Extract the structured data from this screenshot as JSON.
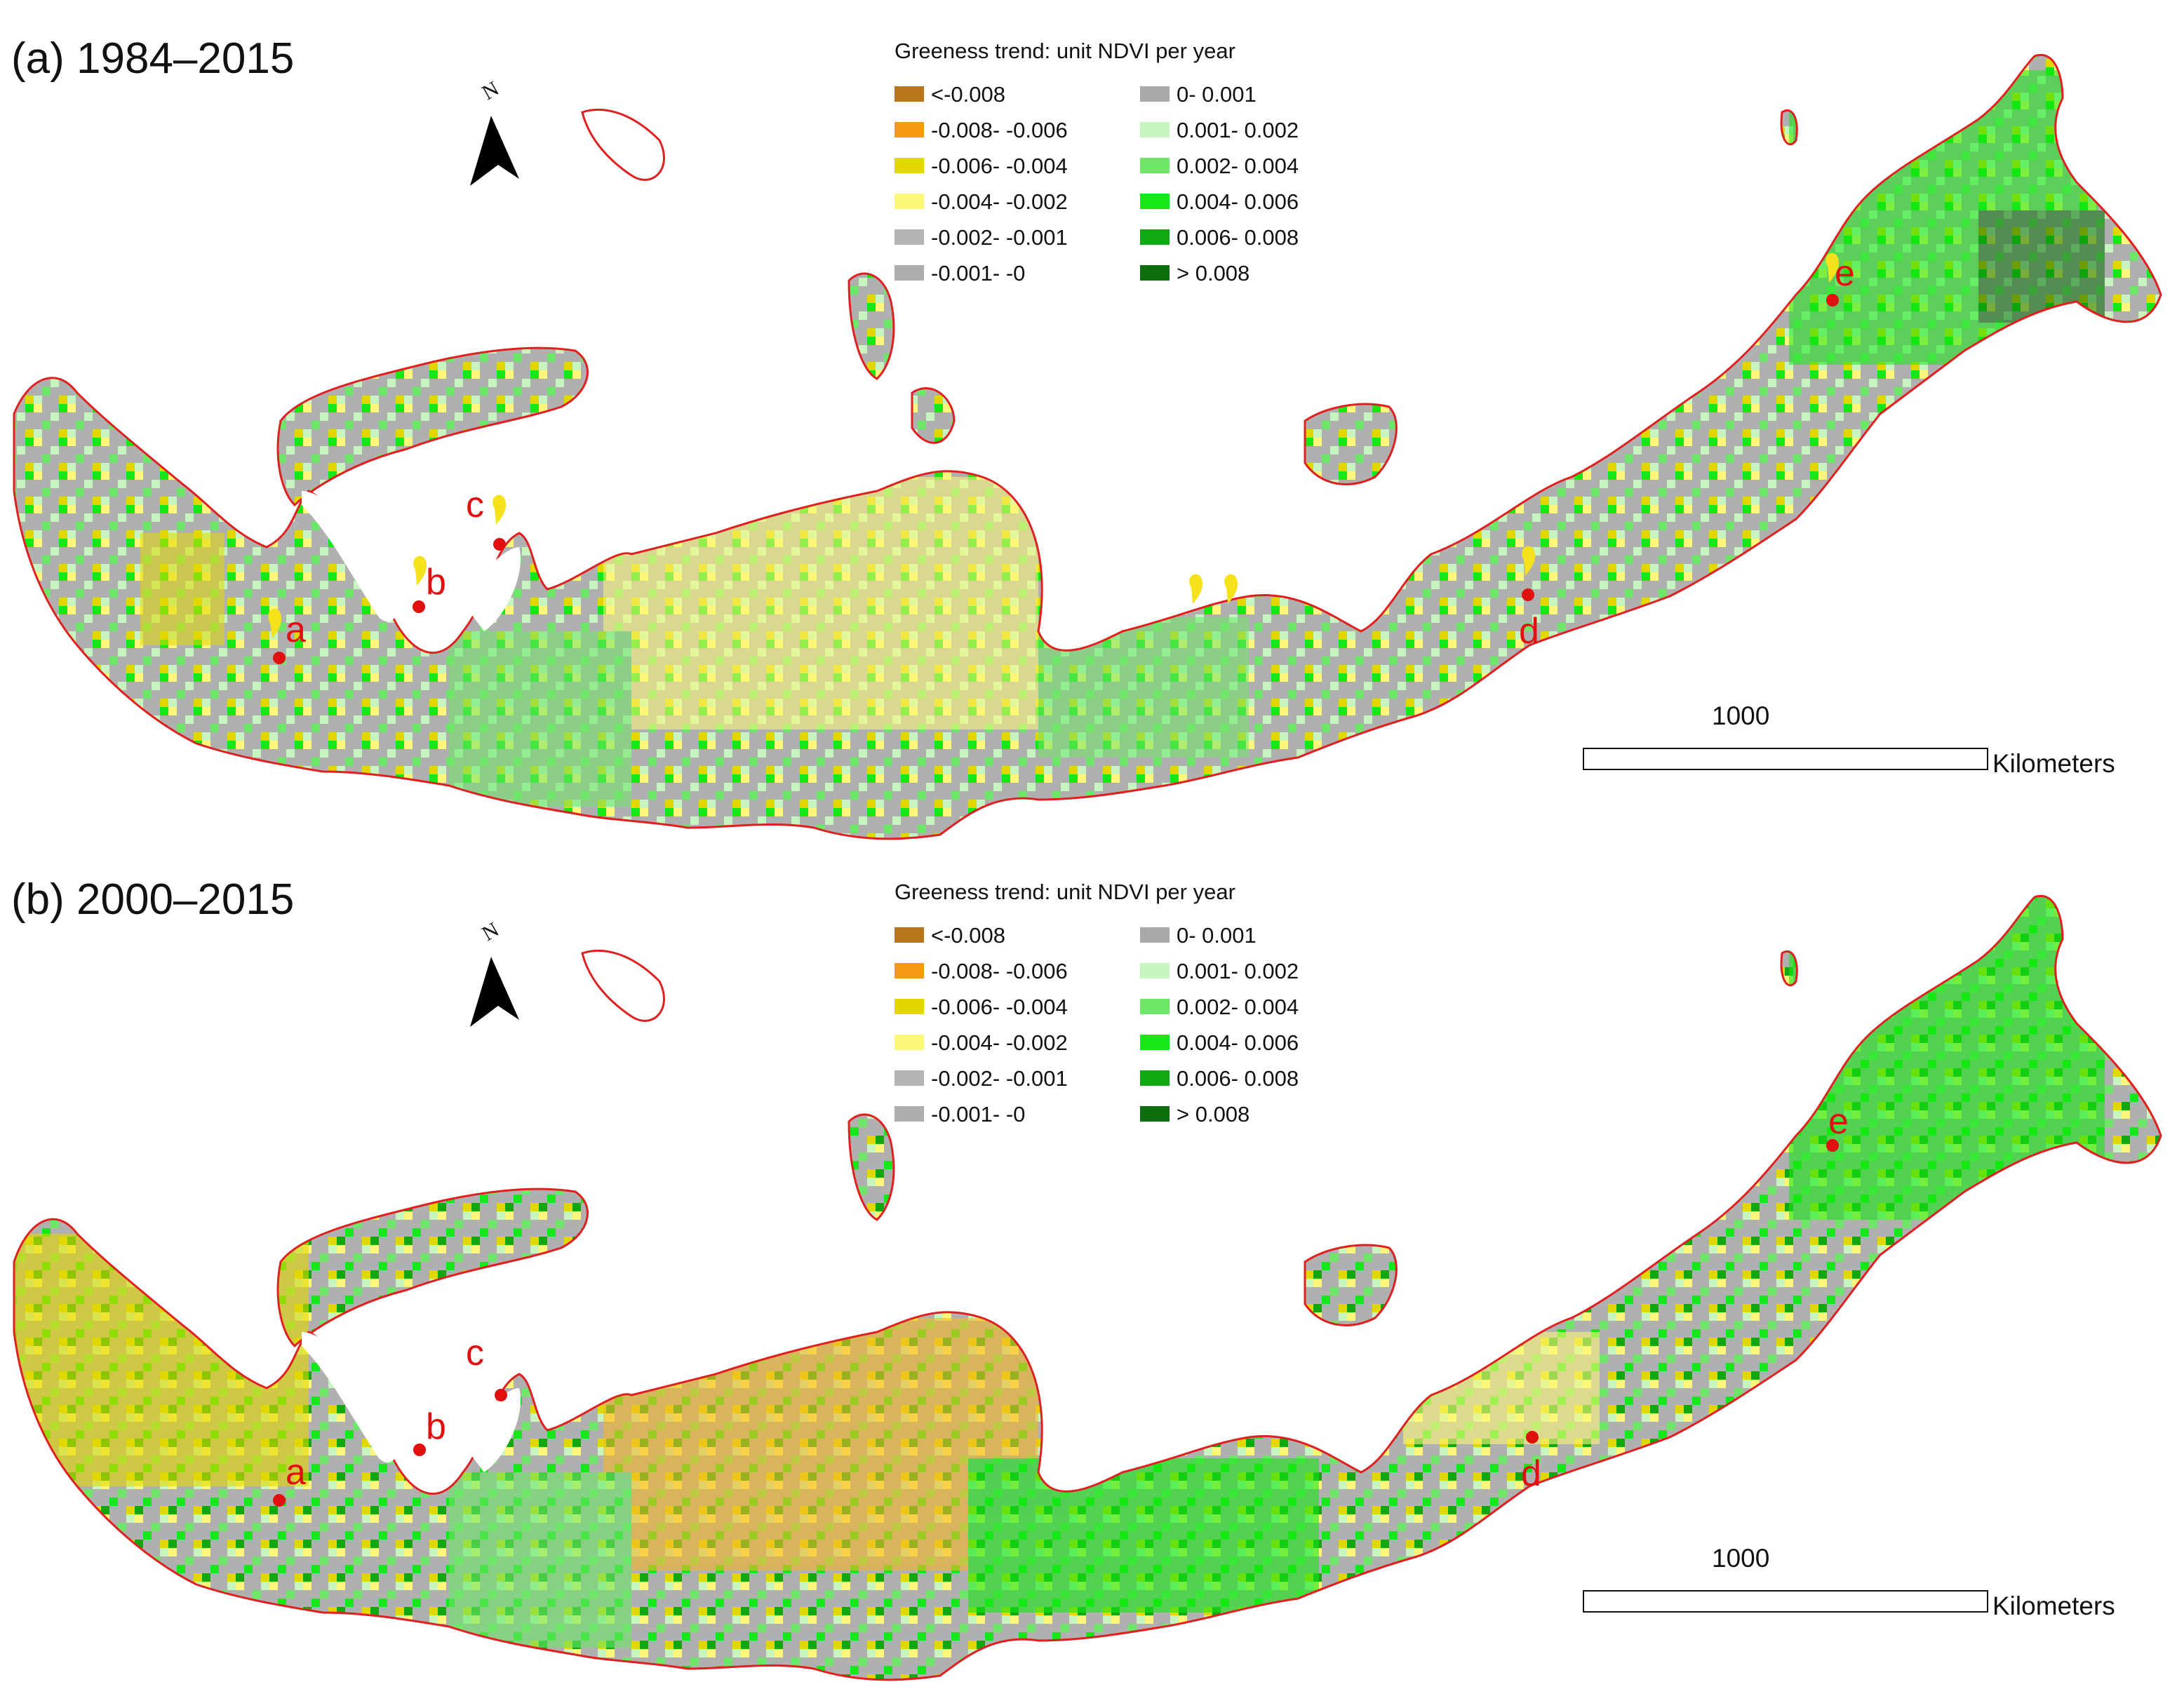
{
  "legend_title": "Greeness trend: unit NDVI per year",
  "legend_classes": [
    {
      "label": "<-0.008",
      "color": "#b8761c"
    },
    {
      "label": "-0.008- -0.006",
      "color": "#f59a12"
    },
    {
      "label": "-0.006- -0.004",
      "color": "#e2d800"
    },
    {
      "label": "-0.004- -0.002",
      "color": "#fbf77a"
    },
    {
      "label": "-0.002- -0.001",
      "color": "#b4b4b4"
    },
    {
      "label": "-0.001- -0",
      "color": "#adadad"
    },
    {
      "label": "0- 0.001",
      "color": "#a9a9a9"
    },
    {
      "label": "0.001- 0.002",
      "color": "#c6f5c0"
    },
    {
      "label": "0.002- 0.004",
      "color": "#6ee66a"
    },
    {
      "label": "0.004- 0.006",
      "color": "#16e716"
    },
    {
      "label": "0.006- 0.008",
      "color": "#10a810"
    },
    {
      "label": "> 0.008",
      "color": "#0b6d0b"
    }
  ],
  "outline_color": "#e02020",
  "site_marker_color": "#e01010",
  "highlight_marker_color": "#f5e21a",
  "panels": [
    {
      "title": "(a) 1984–2015",
      "scale_value": "1000",
      "scale_unit": "Kilometers",
      "north_symbol": "N",
      "sites": [
        "a",
        "b",
        "c",
        "d",
        "e"
      ]
    },
    {
      "title": "(b) 2000–2015",
      "scale_value": "1000",
      "scale_unit": "Kilometers",
      "north_symbol": "N",
      "sites": [
        "a",
        "b",
        "c",
        "d",
        "e"
      ]
    }
  ]
}
